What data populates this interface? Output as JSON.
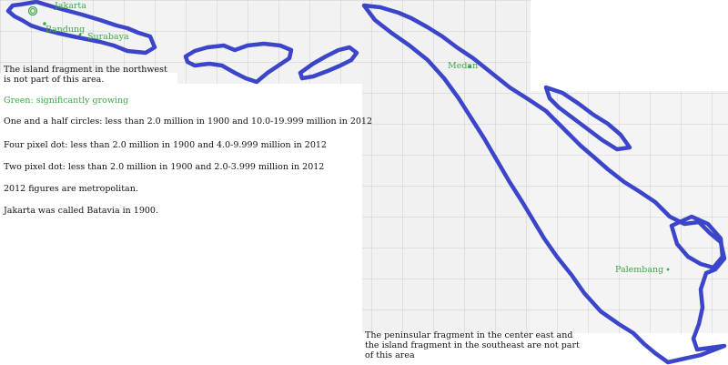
{
  "map": {
    "colors": {
      "outline": "#3b45c9",
      "city": "#3ca84a",
      "paper": "#f3f3f3",
      "grid": "#c4c4c4"
    },
    "cities": {
      "jakarta": "Jakarta",
      "bandung": "Bandung",
      "surabaya": "Surabaya",
      "medan": "Medan",
      "palembang": "Palembang"
    },
    "notes": {
      "northwest": "The island fragment in the northwest is not part of this area.",
      "southeast": "The peninsular fragment in the center east and the island fragment in the southeast are not part of this area"
    },
    "legend": {
      "green": "Green: significantly growing",
      "circles": "One and a half circles: less than 2.0 million in 1900 and 10.0-19.999 million in 2012",
      "four_pixel": "Four pixel dot: less than 2.0 million in 1900 and 4.0-9.999 million in 2012",
      "two_pixel": "Two pixel dot: less than 2.0 million in 1900 and 2.0-3.999 million in 2012",
      "metropolitan": "2012 figures are metropolitan.",
      "batavia": "Jakarta was called Batavia in 1900."
    }
  }
}
